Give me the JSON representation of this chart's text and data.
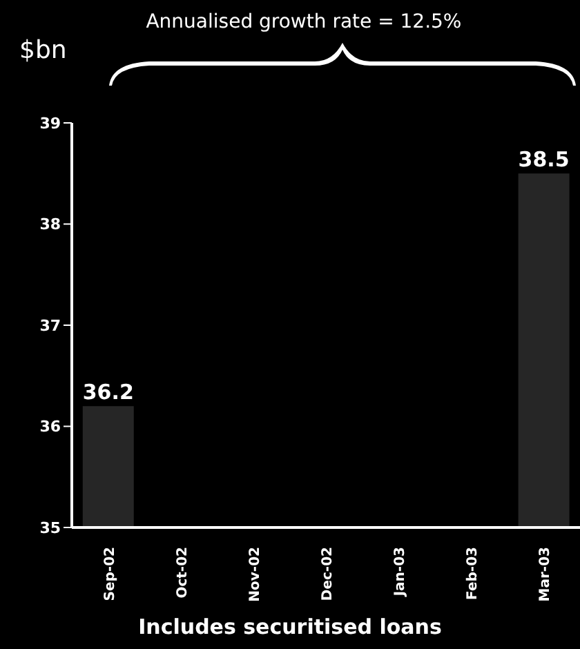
{
  "chart_data": {
    "type": "bar",
    "title": "Annualised growth rate = 12.5%",
    "ylabel": "$bn",
    "categories": [
      "Sep-02",
      "Oct-02",
      "Nov-02",
      "Dec-02",
      "Jan-03",
      "Feb-03",
      "Mar-03"
    ],
    "values": [
      36.2,
      null,
      null,
      null,
      null,
      null,
      38.5
    ],
    "color": "#262626",
    "ylim": [
      35,
      39
    ],
    "yticks": [
      35,
      36,
      37,
      38,
      39
    ],
    "data_labels": true,
    "annotations": [
      "Includes securitised loans"
    ]
  }
}
